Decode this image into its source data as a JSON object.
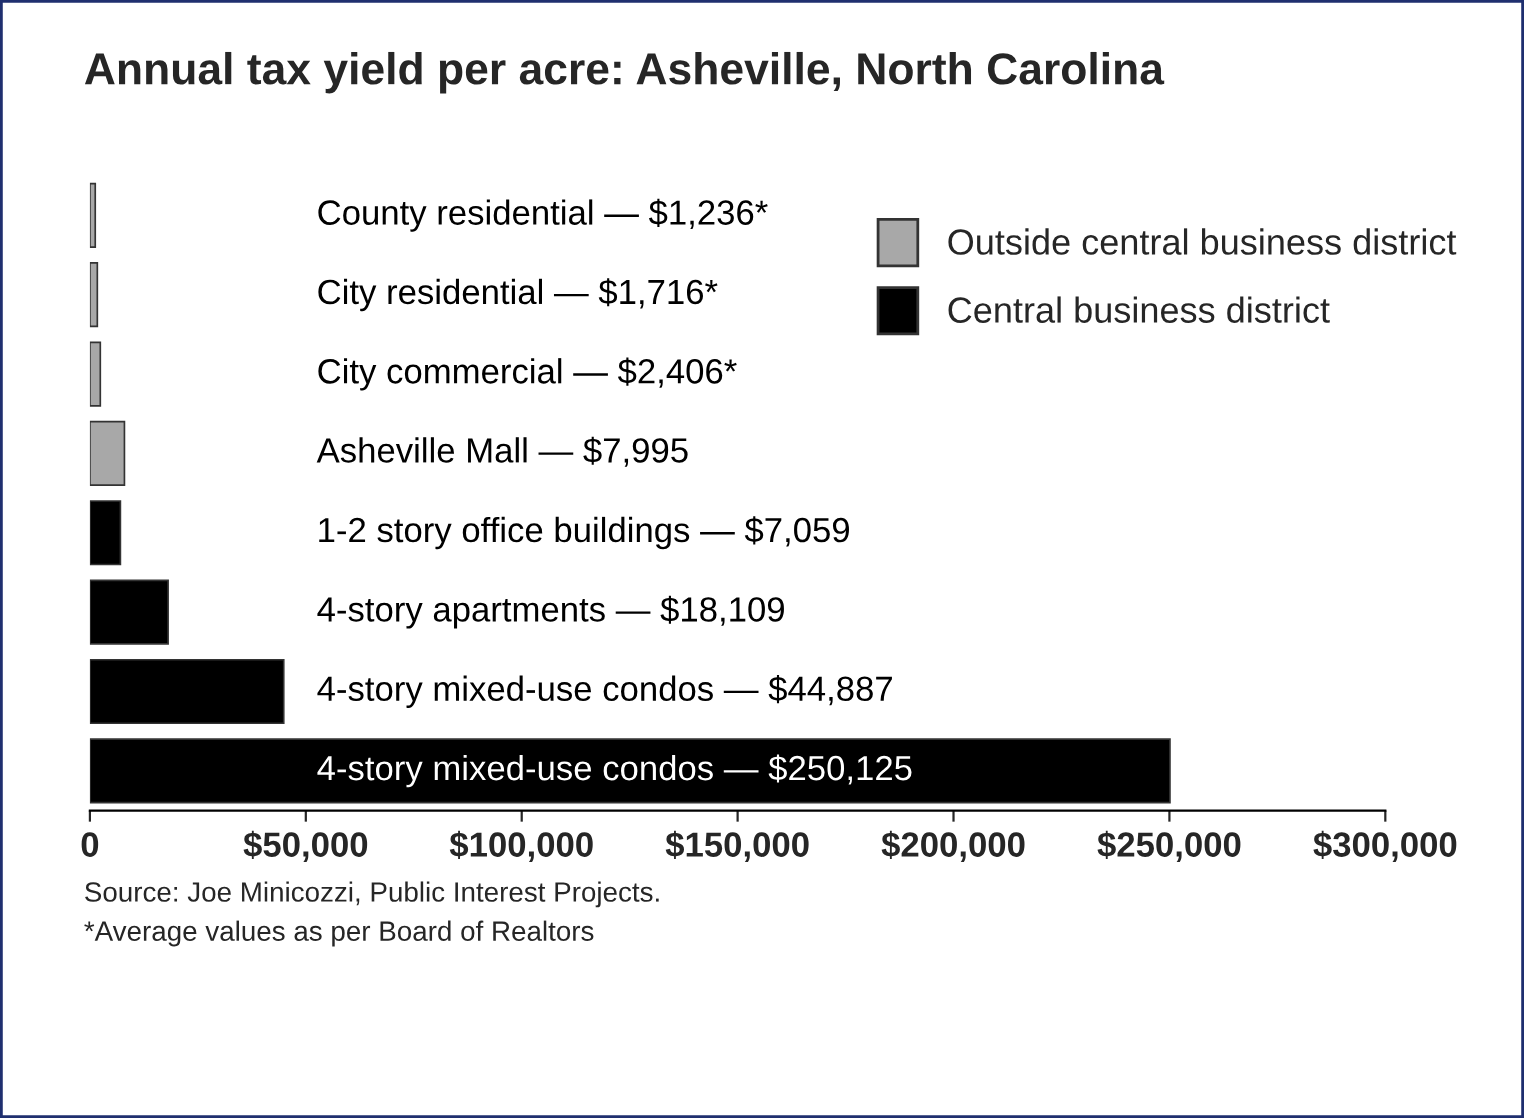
{
  "chart_data": {
    "type": "bar",
    "orientation": "horizontal",
    "title": "Annual tax yield per acre: Asheville, North Carolina",
    "categories": [
      "County residential — $1,236*",
      "City residential — $1,716*",
      "City commercial — $2,406*",
      "Asheville Mall — $7,995",
      "1-2 story office buildings — $7,059",
      "4-story apartments — $18,109",
      "4-story mixed-use condos — $44,887",
      "4-story mixed-use condos — $250,125"
    ],
    "series": [
      {
        "name": "Outside central business district",
        "color": "#a8a8a8",
        "values": [
          1236,
          1716,
          2406,
          7995,
          null,
          null,
          null,
          null
        ]
      },
      {
        "name": "Central business district",
        "color": "#000000",
        "values": [
          null,
          null,
          null,
          null,
          7059,
          18109,
          44887,
          250125
        ]
      }
    ],
    "xlim": [
      0,
      300000
    ],
    "xticks": [
      {
        "value": 0,
        "label": "0"
      },
      {
        "value": 50000,
        "label": "$50,000"
      },
      {
        "value": 100000,
        "label": "$100,000"
      },
      {
        "value": 150000,
        "label": "$150,000"
      },
      {
        "value": 200000,
        "label": "$200,000"
      },
      {
        "value": 250000,
        "label": "$250,000"
      },
      {
        "value": 300000,
        "label": "$300,000"
      }
    ],
    "grid": false,
    "legend": "top right",
    "annotations": [
      "Source: Joe Minicozzi, Public Interest Projects.",
      "*Average values as per Board of Realtors"
    ]
  }
}
